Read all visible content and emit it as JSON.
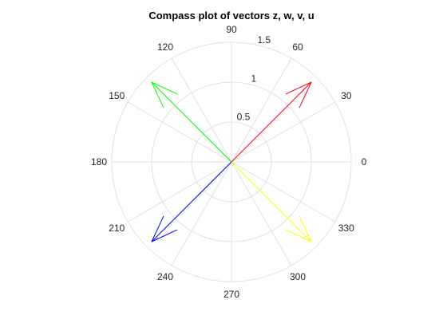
{
  "chart_data": {
    "type": "compass",
    "title": "Compass plot of vectors z, w, v, u",
    "rlim": [
      0,
      1.5
    ],
    "r_ticks": [
      0.5,
      1,
      1.5
    ],
    "r_tick_labels": [
      "0.5",
      "1",
      "1.5"
    ],
    "theta_ticks_deg": [
      0,
      30,
      60,
      90,
      120,
      150,
      180,
      210,
      240,
      270,
      300,
      330
    ],
    "theta_tick_labels": [
      "0",
      "30",
      "60",
      "90",
      "120",
      "150",
      "180",
      "210",
      "240",
      "270",
      "300",
      "330"
    ],
    "grid": true,
    "vectors": [
      {
        "x": 1.0,
        "y": 1.0,
        "color": "#ff0000"
      },
      {
        "x": -1.0,
        "y": 1.0,
        "color": "#00ff00"
      },
      {
        "x": -1.0,
        "y": -1.0,
        "color": "#0000ff"
      },
      {
        "x": 1.0,
        "y": -1.0,
        "color": "#ffff00"
      }
    ]
  }
}
